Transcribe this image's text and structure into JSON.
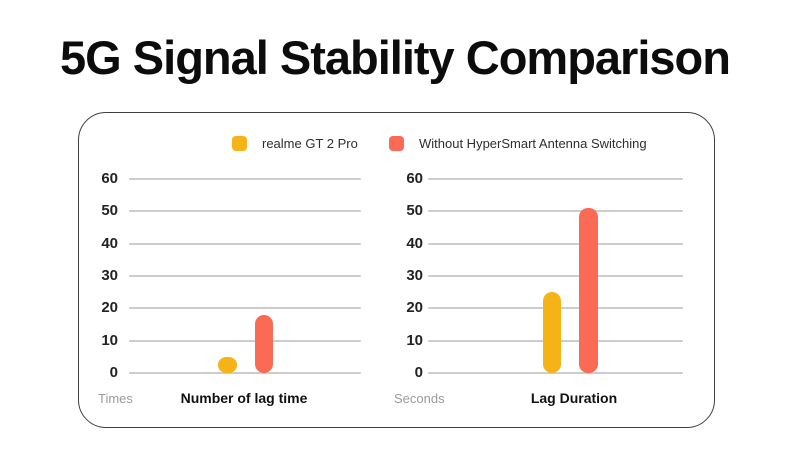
{
  "page": {
    "title": "5G Signal Stability Comparison"
  },
  "legend": {
    "items": [
      {
        "label": "realme GT 2 Pro",
        "color": "#F5B317"
      },
      {
        "label": "Without HyperSmart Antenna Switching",
        "color": "#FA6A55"
      }
    ]
  },
  "colors": {
    "grid": "#cccccc",
    "card_border": "#3f3f3f",
    "title_text": "#0c0c0c",
    "unit_text": "#9b9b9b"
  },
  "chart_data": [
    {
      "type": "bar",
      "title": "Number of lag time",
      "unit": "Times",
      "categories": [
        "Number of lag time"
      ],
      "series": [
        {
          "name": "realme GT 2 Pro",
          "color": "#F5B317",
          "values": [
            5
          ]
        },
        {
          "name": "Without HyperSmart Antenna Switching",
          "color": "#FA6A55",
          "values": [
            18
          ]
        }
      ],
      "ylim": [
        0,
        60
      ],
      "yticks": [
        0,
        10,
        20,
        30,
        40,
        50,
        60
      ],
      "grid": true,
      "legend_position": "top"
    },
    {
      "type": "bar",
      "title": "Lag Duration",
      "unit": "Seconds",
      "categories": [
        "Lag Duration"
      ],
      "series": [
        {
          "name": "realme GT 2 Pro",
          "color": "#F5B317",
          "values": [
            25
          ]
        },
        {
          "name": "Without HyperSmart Antenna Switching",
          "color": "#FA6A55",
          "values": [
            51
          ]
        }
      ],
      "ylim": [
        0,
        60
      ],
      "yticks": [
        0,
        10,
        20,
        30,
        40,
        50,
        60
      ],
      "grid": true,
      "legend_position": "top"
    }
  ]
}
